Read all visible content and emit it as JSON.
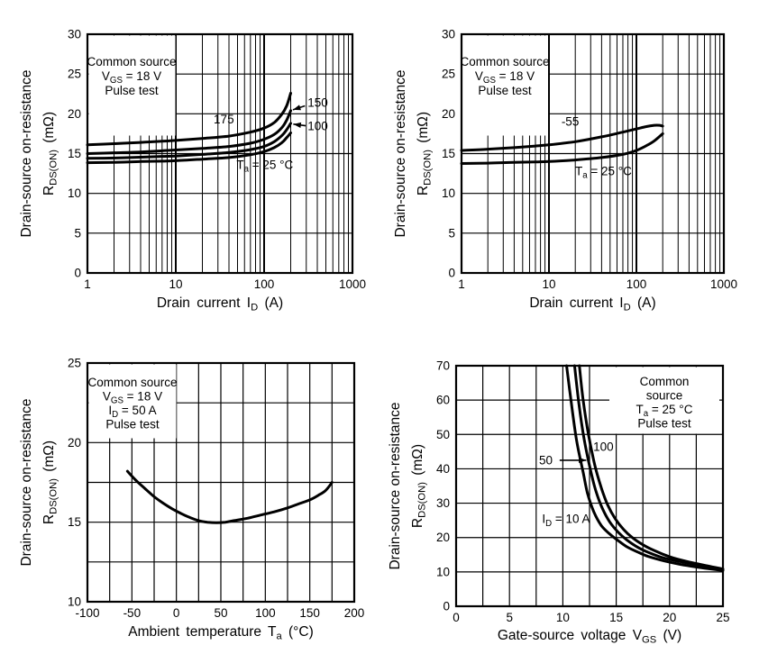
{
  "page": {
    "background": "#ffffff",
    "ink": "#000000",
    "figure_name": "MOSFET drain-source on-resistance characteristic curves"
  },
  "chart_data": [
    {
      "name": "rdson-vs-drain-current-high-temperature",
      "type": "line",
      "conditions": [
        "Common source",
        "V|GS|  = 18 V",
        "Pulse test"
      ],
      "x_axis": {
        "scale": "log",
        "min": 1,
        "max": 1000,
        "title": "Drain  current   I|D|   (A)",
        "tick_values": [
          1,
          10,
          100,
          1000
        ],
        "tick_labels": [
          "1",
          "10",
          "100",
          "1000"
        ]
      },
      "y_axis": {
        "scale": "linear",
        "min": 0,
        "max": 30,
        "grid_step": 5,
        "title_line1": "Drain-source on-resistance",
        "title_line2": "R|DS(ON)|   (mΩ)",
        "tick_values": [
          0,
          5,
          10,
          15,
          20,
          25,
          30
        ],
        "tick_labels": [
          "0",
          "5",
          "10",
          "15",
          "20",
          "25",
          "30"
        ]
      },
      "series": [
        {
          "name": "Ta = 175 °C",
          "points": [
            [
              1,
              16.1
            ],
            [
              2,
              16.25
            ],
            [
              4,
              16.4
            ],
            [
              7,
              16.55
            ],
            [
              10,
              16.65
            ],
            [
              20,
              16.9
            ],
            [
              40,
              17.2
            ],
            [
              70,
              17.7
            ],
            [
              100,
              18.2
            ],
            [
              130,
              18.9
            ],
            [
              160,
              20.0
            ],
            [
              180,
              21.0
            ],
            [
              200,
              22.6
            ]
          ]
        },
        {
          "name": "Ta = 150 °C",
          "points": [
            [
              1,
              15.0
            ],
            [
              2,
              15.1
            ],
            [
              4,
              15.2
            ],
            [
              7,
              15.35
            ],
            [
              10,
              15.45
            ],
            [
              20,
              15.65
            ],
            [
              40,
              15.9
            ],
            [
              70,
              16.3
            ],
            [
              100,
              16.8
            ],
            [
              130,
              17.4
            ],
            [
              160,
              18.3
            ],
            [
              180,
              19.2
            ],
            [
              200,
              20.4
            ]
          ]
        },
        {
          "name": "Ta = 100 °C",
          "points": [
            [
              1,
              14.4
            ],
            [
              2,
              14.45
            ],
            [
              4,
              14.55
            ],
            [
              7,
              14.65
            ],
            [
              10,
              14.7
            ],
            [
              20,
              14.9
            ],
            [
              40,
              15.15
            ],
            [
              70,
              15.5
            ],
            [
              100,
              15.9
            ],
            [
              130,
              16.5
            ],
            [
              160,
              17.3
            ],
            [
              180,
              18.0
            ],
            [
              200,
              18.8
            ]
          ]
        },
        {
          "name": "Ta = 25 °C",
          "points": [
            [
              1,
              13.85
            ],
            [
              2,
              13.9
            ],
            [
              4,
              14.0
            ],
            [
              7,
              14.05
            ],
            [
              10,
              14.1
            ],
            [
              20,
              14.3
            ],
            [
              40,
              14.5
            ],
            [
              70,
              14.85
            ],
            [
              100,
              15.25
            ],
            [
              130,
              15.75
            ],
            [
              160,
              16.4
            ],
            [
              180,
              17.0
            ],
            [
              200,
              17.6
            ]
          ]
        }
      ],
      "labels": [
        {
          "text": "175",
          "x": 35,
          "y": 19.3
        },
        {
          "text": "150",
          "x": 405,
          "y": 21.4,
          "arrow_from": [
            290,
            21.0
          ],
          "arrow_to": [
            212,
            20.5
          ]
        },
        {
          "text": "100",
          "x": 405,
          "y": 18.45,
          "arrow_from": [
            295,
            18.5
          ],
          "arrow_to": [
            214,
            18.7
          ]
        },
        {
          "text": "T|a| = 25 °C",
          "x": 102,
          "y": 13.6
        }
      ]
    },
    {
      "name": "rdson-vs-drain-current-low-temperature",
      "type": "line",
      "conditions": [
        "Common source",
        "V|GS|  = 18 V",
        "Pulse test"
      ],
      "x_axis": {
        "scale": "log",
        "min": 1,
        "max": 1000,
        "title": "Drain  current   I|D|   (A)",
        "tick_values": [
          1,
          10,
          100,
          1000
        ],
        "tick_labels": [
          "1",
          "10",
          "100",
          "1000"
        ]
      },
      "y_axis": {
        "scale": "linear",
        "min": 0,
        "max": 30,
        "grid_step": 5,
        "title_line1": "Drain-source on-resistance",
        "title_line2": "R|DS(ON)|   (mΩ)",
        "tick_values": [
          0,
          5,
          10,
          15,
          20,
          25,
          30
        ],
        "tick_labels": [
          "0",
          "5",
          "10",
          "15",
          "20",
          "25",
          "30"
        ]
      },
      "series": [
        {
          "name": "Ta = -55 °C",
          "points": [
            [
              1,
              15.4
            ],
            [
              2,
              15.55
            ],
            [
              4,
              15.75
            ],
            [
              7,
              15.95
            ],
            [
              10,
              16.1
            ],
            [
              20,
              16.5
            ],
            [
              40,
              17.1
            ],
            [
              70,
              17.7
            ],
            [
              100,
              18.1
            ],
            [
              130,
              18.4
            ],
            [
              160,
              18.55
            ],
            [
              185,
              18.55
            ],
            [
              200,
              18.45
            ]
          ]
        },
        {
          "name": "Ta = 25 °C",
          "points": [
            [
              1,
              13.75
            ],
            [
              2,
              13.8
            ],
            [
              4,
              13.9
            ],
            [
              7,
              13.95
            ],
            [
              10,
              14.0
            ],
            [
              20,
              14.2
            ],
            [
              40,
              14.5
            ],
            [
              70,
              14.9
            ],
            [
              100,
              15.4
            ],
            [
              130,
              16.0
            ],
            [
              160,
              16.6
            ],
            [
              200,
              17.5
            ]
          ]
        }
      ],
      "labels": [
        {
          "text": "-55",
          "x": 17.5,
          "y": 19.0
        },
        {
          "text": "T|a| = 25 °C",
          "x": 42,
          "y": 12.8
        }
      ]
    },
    {
      "name": "rdson-vs-ambient-temperature",
      "type": "line",
      "conditions": [
        "Common source",
        "V|GS|  = 18 V",
        "I|D| = 50 A",
        "Pulse test"
      ],
      "x_axis": {
        "scale": "linear",
        "min": -100,
        "max": 200,
        "grid_step": 25,
        "title": "Ambient  temperature   T|a|   (°C)",
        "tick_values": [
          -100,
          -50,
          0,
          50,
          100,
          150,
          200
        ],
        "tick_labels": [
          "-100",
          "-50",
          "0",
          "50",
          "100",
          "150",
          "200"
        ]
      },
      "y_axis": {
        "scale": "linear",
        "min": 10,
        "max": 25,
        "grid_step": 2.5,
        "title_line1": "Drain-source on-resistance",
        "title_line2": "R|DS(ON)|   (mΩ)",
        "tick_values": [
          10,
          15,
          20,
          25
        ],
        "tick_labels": [
          "10",
          "15",
          "20",
          "25"
        ]
      },
      "series": [
        {
          "name": "ID = 50 A",
          "points": [
            [
              -55,
              18.2
            ],
            [
              -45,
              17.6
            ],
            [
              -35,
              17.1
            ],
            [
              -25,
              16.6
            ],
            [
              -15,
              16.2
            ],
            [
              -5,
              15.85
            ],
            [
              5,
              15.55
            ],
            [
              15,
              15.3
            ],
            [
              25,
              15.1
            ],
            [
              35,
              15.0
            ],
            [
              45,
              14.97
            ],
            [
              55,
              15.0
            ],
            [
              65,
              15.1
            ],
            [
              80,
              15.25
            ],
            [
              95,
              15.45
            ],
            [
              110,
              15.65
            ],
            [
              125,
              15.9
            ],
            [
              140,
              16.2
            ],
            [
              150,
              16.4
            ],
            [
              160,
              16.7
            ],
            [
              168,
              17.0
            ],
            [
              175,
              17.5
            ]
          ]
        }
      ],
      "labels": []
    },
    {
      "name": "rdson-vs-gate-source-voltage",
      "type": "line",
      "conditions": [
        "Common",
        "source",
        "T|a|  = 25 °C",
        "Pulse test"
      ],
      "x_axis": {
        "scale": "linear",
        "min": 0,
        "max": 25,
        "grid_step": 2.5,
        "title": "Gate-source  voltage   V|GS|   (V)",
        "tick_values": [
          0,
          5,
          10,
          15,
          20,
          25
        ],
        "tick_labels": [
          "0",
          "5",
          "10",
          "15",
          "20",
          "25"
        ]
      },
      "y_axis": {
        "scale": "linear",
        "min": 0,
        "max": 70,
        "grid_step": 10,
        "title_line1": "Drain-source on-resistance",
        "title_line2": "R|DS(ON)|   (mΩ)",
        "tick_values": [
          0,
          10,
          20,
          30,
          40,
          50,
          60,
          70
        ],
        "tick_labels": [
          "0",
          "10",
          "20",
          "30",
          "40",
          "50",
          "60",
          "70"
        ]
      },
      "series": [
        {
          "name": "ID = 10 A",
          "points": [
            [
              10.35,
              70
            ],
            [
              10.8,
              59
            ],
            [
              11.3,
              48
            ],
            [
              11.9,
              39
            ],
            [
              12.3,
              33
            ],
            [
              12.9,
              27.5
            ],
            [
              13.6,
              23.5
            ],
            [
              14.4,
              21
            ],
            [
              15.1,
              19.3
            ],
            [
              16,
              17.3
            ],
            [
              17,
              15.8
            ],
            [
              18,
              14.5
            ],
            [
              19.5,
              13.2
            ],
            [
              21,
              12.2
            ],
            [
              23,
              11.2
            ],
            [
              25,
              10.4
            ]
          ]
        },
        {
          "name": "ID = 50 A",
          "points": [
            [
              11.1,
              70
            ],
            [
              11.5,
              59
            ],
            [
              12,
              48.5
            ],
            [
              12.6,
              39.5
            ],
            [
              13.1,
              33.5
            ],
            [
              13.7,
              28.5
            ],
            [
              14.4,
              24.5
            ],
            [
              15.2,
              21.5
            ],
            [
              16,
              19.3
            ],
            [
              17,
              17.2
            ],
            [
              18,
              15.7
            ],
            [
              19.5,
              14
            ],
            [
              21,
              13
            ],
            [
              23,
              11.8
            ],
            [
              25,
              10.6
            ]
          ]
        },
        {
          "name": "ID = 100 A",
          "points": [
            [
              11.55,
              70
            ],
            [
              11.9,
              60
            ],
            [
              12.4,
              50
            ],
            [
              13,
              41
            ],
            [
              13.6,
              34.5
            ],
            [
              14.2,
              29.5
            ],
            [
              14.9,
              25.5
            ],
            [
              15.7,
              22.3
            ],
            [
              16.5,
              20
            ],
            [
              17.5,
              17.9
            ],
            [
              18.5,
              16.3
            ],
            [
              20,
              14.4
            ],
            [
              21.5,
              13.1
            ],
            [
              23,
              12.1
            ],
            [
              25,
              10.85
            ]
          ]
        }
      ],
      "labels": [
        {
          "text": "50",
          "x": 8.4,
          "y": 42.5,
          "arrow_from": [
            9.7,
            42.5
          ],
          "arrow_to": [
            12.2,
            42.5
          ]
        },
        {
          "text": "100",
          "x": 13.8,
          "y": 46.4
        },
        {
          "text": "I|D| = 10 A",
          "x": 10.3,
          "y": 25.4
        }
      ]
    }
  ]
}
